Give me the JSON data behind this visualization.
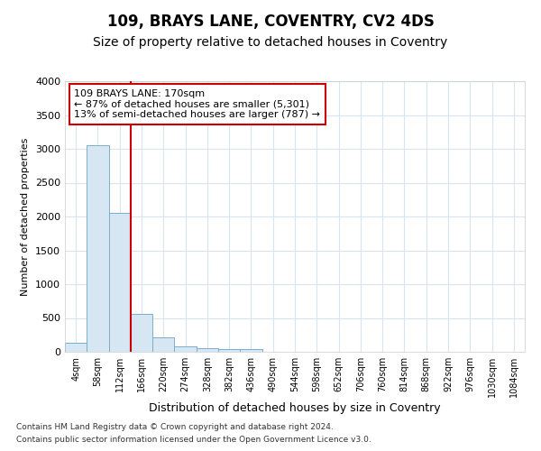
{
  "title": "109, BRAYS LANE, COVENTRY, CV2 4DS",
  "subtitle": "Size of property relative to detached houses in Coventry",
  "xlabel": "Distribution of detached houses by size in Coventry",
  "ylabel": "Number of detached properties",
  "bin_labels": [
    "4sqm",
    "58sqm",
    "112sqm",
    "166sqm",
    "220sqm",
    "274sqm",
    "328sqm",
    "382sqm",
    "436sqm",
    "490sqm",
    "544sqm",
    "598sqm",
    "652sqm",
    "706sqm",
    "760sqm",
    "814sqm",
    "868sqm",
    "922sqm",
    "976sqm",
    "1030sqm",
    "1084sqm"
  ],
  "bar_heights": [
    130,
    3060,
    2050,
    560,
    215,
    80,
    60,
    45,
    35,
    0,
    0,
    0,
    0,
    0,
    0,
    0,
    0,
    0,
    0,
    0,
    0
  ],
  "bar_color": "#d6e6f2",
  "bar_edge_color": "#7aaecc",
  "property_line_x": 2.5,
  "property_line_color": "#cc0000",
  "annotation_line1": "109 BRAYS LANE: 170sqm",
  "annotation_line2": "← 87% of detached houses are smaller (5,301)",
  "annotation_line3": "13% of semi-detached houses are larger (787) →",
  "annotation_box_color": "#cc0000",
  "ylim": [
    0,
    4000
  ],
  "yticks": [
    0,
    500,
    1000,
    1500,
    2000,
    2500,
    3000,
    3500,
    4000
  ],
  "footer_line1": "Contains HM Land Registry data © Crown copyright and database right 2024.",
  "footer_line2": "Contains public sector information licensed under the Open Government Licence v3.0.",
  "bg_color": "#ffffff",
  "plot_bg_color": "#ffffff",
  "grid_color": "#d8e4f0",
  "title_fontsize": 12,
  "subtitle_fontsize": 10,
  "ylabel_fontsize": 8,
  "xlabel_fontsize": 9
}
